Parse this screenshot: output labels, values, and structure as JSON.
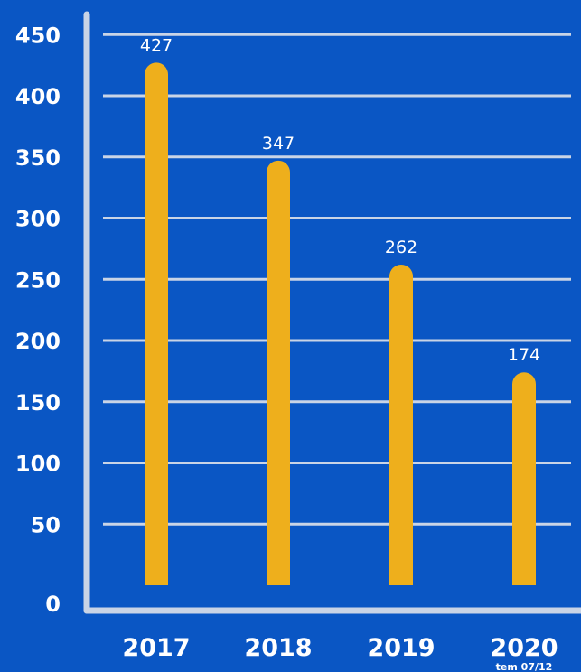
{
  "chart_data": {
    "type": "bar",
    "categories": [
      "2017",
      "2018",
      "2019",
      "2020"
    ],
    "values": [
      427,
      347,
      262,
      174
    ],
    "data_labels": [
      "427",
      "347",
      "262",
      "174"
    ],
    "category_notes": [
      "",
      "",
      "",
      "tem 07/12"
    ],
    "yticks": [
      "0",
      "50",
      "100",
      "150",
      "200",
      "250",
      "300",
      "350",
      "400",
      "450"
    ],
    "ylim": [
      0,
      450
    ],
    "grid": true,
    "title": "",
    "xlabel": "",
    "ylabel": ""
  },
  "colors": {
    "background": "#0a56c4",
    "bar": "#eeaf1c",
    "grid": "#c9d4e6",
    "axis": "#c9d4e6",
    "text": "#ffffff"
  }
}
